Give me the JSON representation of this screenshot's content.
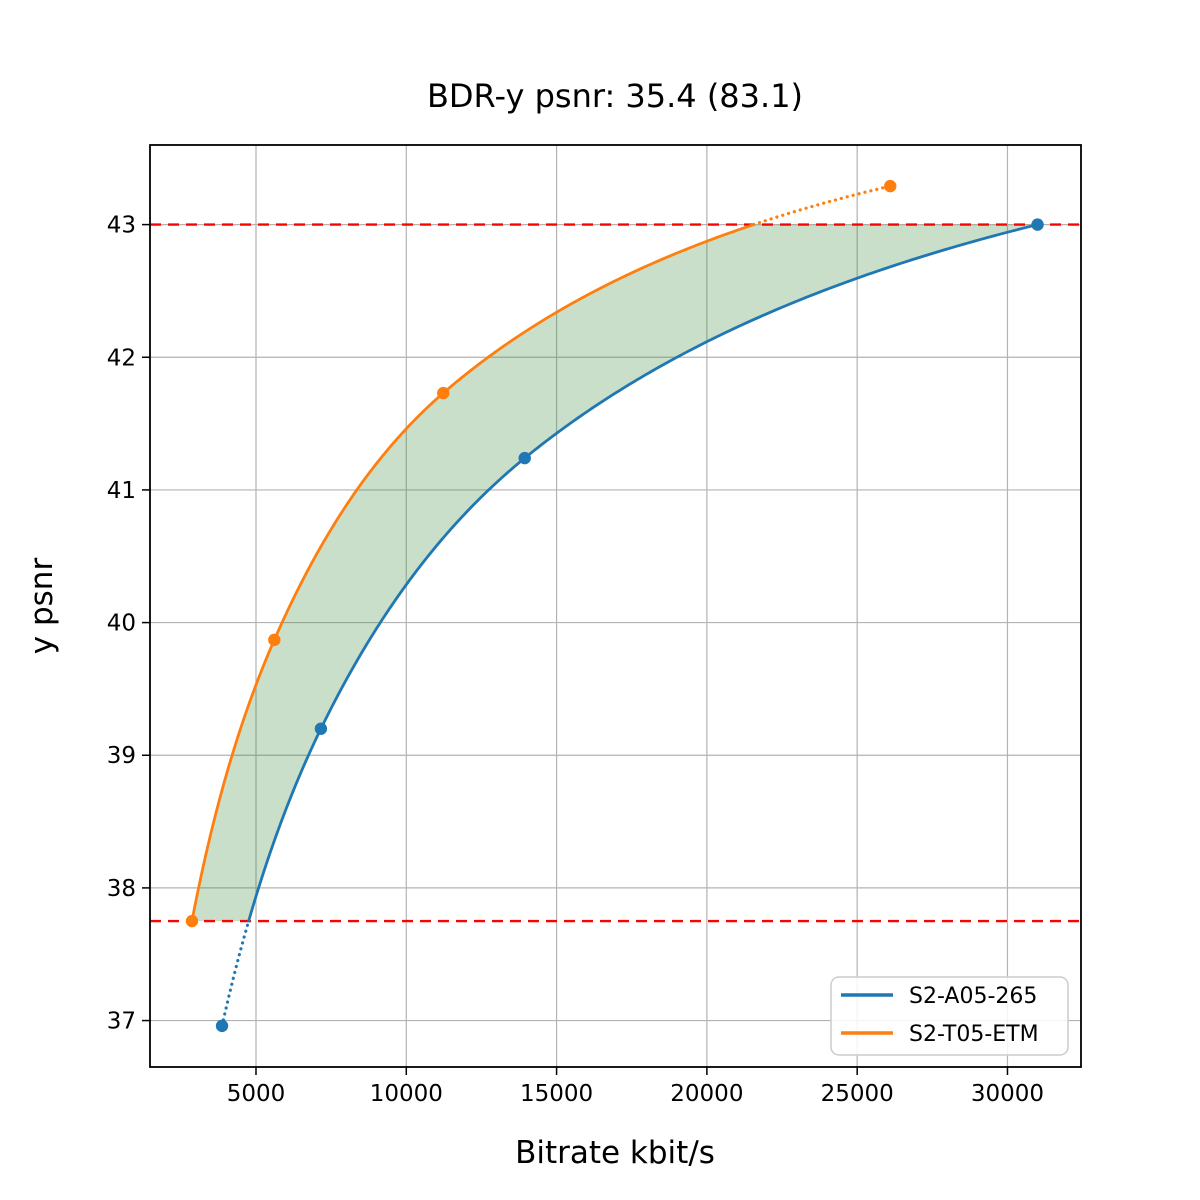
{
  "chart_data": {
    "type": "line",
    "title": "BDR-y psnr: 35.4 (83.1)",
    "xlabel": "Bitrate kbit/s",
    "ylabel": "y psnr",
    "xlim": [
      1474,
      32446
    ],
    "ylim": [
      36.65,
      43.6
    ],
    "x_ticks": [
      5000,
      10000,
      15000,
      20000,
      25000,
      30000
    ],
    "y_ticks": [
      37,
      38,
      39,
      40,
      41,
      42,
      43
    ],
    "grid": true,
    "grid_color": "#b3b3b3",
    "series": [
      {
        "name": "S2-A05-265",
        "color": "#1f77b4",
        "marker": "circle",
        "points": [
          [
            3870,
            36.96
          ],
          [
            7160,
            39.2
          ],
          [
            13940,
            41.24
          ],
          [
            31000,
            43.0
          ]
        ],
        "solid_min_y": 37.75
      },
      {
        "name": "S2-T05-ETM",
        "color": "#ff7f0e",
        "marker": "circle",
        "points": [
          [
            2870,
            37.75
          ],
          [
            5610,
            39.87
          ],
          [
            11230,
            41.73
          ],
          [
            26100,
            43.29
          ]
        ],
        "solid_max_y": 43.0
      }
    ],
    "overlap_lines": {
      "style": "dashed",
      "color": "#ff0000",
      "y_values": [
        37.75,
        43.0
      ]
    },
    "bd_area_fill": {
      "color": "#3c8c3c",
      "opacity": 0.28
    },
    "legend": {
      "position": "lower right",
      "entries": [
        "S2-A05-265",
        "S2-T05-ETM"
      ]
    }
  }
}
